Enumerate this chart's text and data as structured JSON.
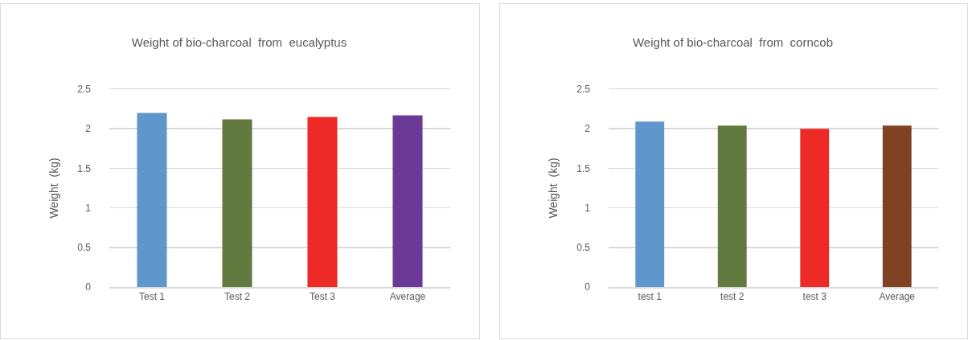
{
  "chart_data": [
    {
      "type": "bar",
      "title": "Weight of bio-charcoal  from  eucalyptus",
      "ylabel": "Weight  (kg)",
      "categories": [
        "Test 1",
        "Test 2",
        "Test 3",
        "Average"
      ],
      "values": [
        2.2,
        2.12,
        2.15,
        2.17
      ],
      "colors": [
        "#5f97cc",
        "#617a3f",
        "#ee2a27",
        "#6b3a96"
      ],
      "ylim": [
        0,
        2.5
      ],
      "yticks": [
        0,
        0.5,
        1,
        1.5,
        2,
        2.5
      ],
      "grid": "y"
    },
    {
      "type": "bar",
      "title": "Weight of bio-charcoal  from  corncob",
      "ylabel": "Weight  (kg)",
      "categories": [
        "test 1",
        "test 2",
        "test 3",
        "Average"
      ],
      "values": [
        2.09,
        2.04,
        2.0,
        2.04
      ],
      "colors": [
        "#5f97cc",
        "#617a3f",
        "#ee2a27",
        "#7f4323"
      ],
      "ylim": [
        0,
        2.5
      ],
      "yticks": [
        0,
        0.5,
        1,
        1.5,
        2,
        2.5
      ],
      "grid": "y"
    }
  ]
}
